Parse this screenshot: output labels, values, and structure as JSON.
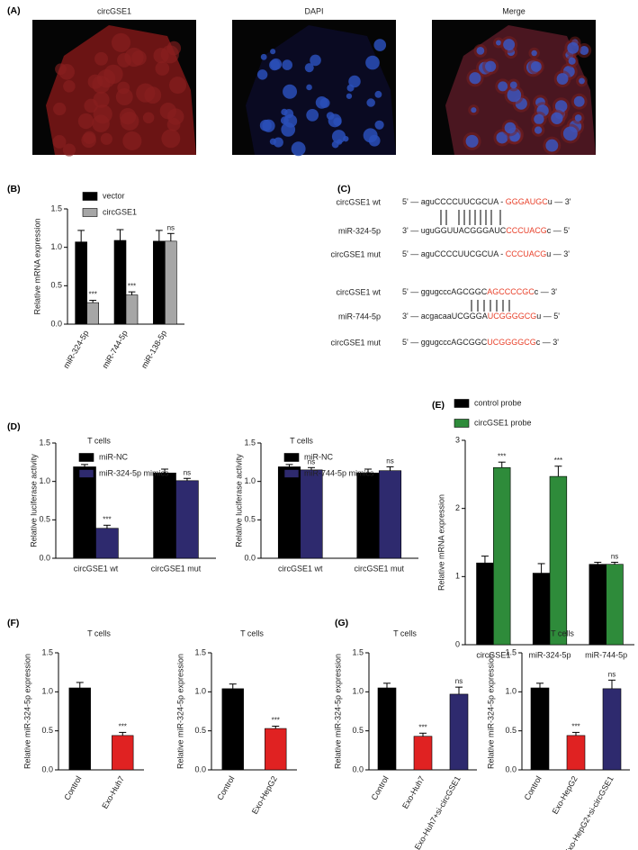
{
  "figure_a": {
    "panel": "(A)",
    "images": [
      {
        "label": "circGSE1",
        "color": "#e8231f"
      },
      {
        "label": "DAPI",
        "color": "#2f6fd0"
      },
      {
        "label": "Merge",
        "color": "#d9403a"
      }
    ]
  },
  "figure_c": {
    "panel": "(C)",
    "rows": [
      {
        "label": "circGSE1 wt",
        "segments": [
          {
            "text": "5' — aguCCCCUUCGCUA - ",
            "color": "#222222"
          },
          {
            "text": "GGGAUGC",
            "color": "#e8402a"
          },
          {
            "text": "u — 3'",
            "color": "#222222"
          }
        ]
      },
      {
        "label": "miR-324-5p",
        "segments": [
          {
            "text": "3' — uguGGUUACGGGAUC",
            "color": "#222222"
          },
          {
            "text": "CCCUACG",
            "color": "#e8402a"
          },
          {
            "text": "c — 5'",
            "color": "#222222"
          }
        ]
      },
      {
        "label": "circGSE1 mut",
        "segments": [
          {
            "text": "5' — aguCCCCUUCGCUA - ",
            "color": "#222222"
          },
          {
            "text": "CCCUACG",
            "color": "#e8402a"
          },
          {
            "text": "u — 3'",
            "color": "#222222"
          }
        ]
      },
      {
        "label": "circGSE1 wt",
        "segments": [
          {
            "text": "5' — ggugcccAGCGGC",
            "color": "#222222"
          },
          {
            "text": "AGCCCCGC",
            "color": "#e8402a"
          },
          {
            "text": "c — 3'",
            "color": "#222222"
          }
        ]
      },
      {
        "label": "miR-744-5p",
        "segments": [
          {
            "text": "3' — acgacaaUCGGGA",
            "color": "#222222"
          },
          {
            "text": "UCGGGGCG",
            "color": "#e8402a"
          },
          {
            "text": "u — 5'",
            "color": "#222222"
          }
        ]
      },
      {
        "label": "circGSE1 mut",
        "segments": [
          {
            "text": "5' — ggugcccAGCGGC",
            "color": "#222222"
          },
          {
            "text": "UCGGGGCG",
            "color": "#e8402a"
          },
          {
            "text": "c — 3'",
            "color": "#222222"
          }
        ]
      }
    ]
  },
  "chart_data": [
    {
      "type": "bar",
      "panel": "(B)",
      "ylabel": "Relative mRNA expression",
      "categories": [
        "miR-324-5p",
        "miR-744-5p",
        "miR-138-5p"
      ],
      "series": [
        {
          "name": "vector",
          "color": "#000000",
          "values": [
            1.07,
            1.09,
            1.08
          ],
          "errors": [
            0.15,
            0.14,
            0.14
          ]
        },
        {
          "name": "circGSE1",
          "color": "#a6a6a6",
          "values": [
            0.28,
            0.38,
            1.08
          ],
          "errors": [
            0.03,
            0.04,
            0.1
          ],
          "annotations": [
            "***",
            "***",
            "ns"
          ]
        }
      ],
      "ylim": [
        0,
        1.5
      ],
      "yticks": [
        {
          "value": 0,
          "label": "0.0"
        },
        {
          "value": 0.5,
          "label": "0.5"
        },
        {
          "value": 1,
          "label": "1.0"
        },
        {
          "value": 1.5,
          "label": "1.5"
        }
      ]
    },
    {
      "type": "bar",
      "panel": "(D)",
      "title": "T cells",
      "ylabel": "Relative  luciferase activity",
      "categories": [
        "circGSE1 wt",
        "circGSE1 mut"
      ],
      "series": [
        {
          "name": "miR-NC",
          "color": "#000000",
          "values": [
            1.19,
            1.11
          ],
          "errors": [
            0.03,
            0.05
          ]
        },
        {
          "name": "miR-324-5p mimics",
          "color": "#2e2a6e",
          "values": [
            0.39,
            1.01
          ],
          "errors": [
            0.04,
            0.03
          ],
          "annotations": [
            "***",
            "ns"
          ]
        }
      ],
      "ylim": [
        0,
        1.5
      ],
      "yticks": [
        {
          "value": 0,
          "label": "0.0"
        },
        {
          "value": 0.5,
          "label": "0.5"
        },
        {
          "value": 1,
          "label": "1.0"
        },
        {
          "value": 1.5,
          "label": "1.5"
        }
      ]
    },
    {
      "type": "bar",
      "title": "T cells",
      "ylabel": "Relative luciferase activity",
      "categories": [
        "circGSE1 wt",
        "circGSE1 mut"
      ],
      "series": [
        {
          "name": "miR-NC",
          "color": "#000000",
          "values": [
            1.19,
            1.11
          ],
          "errors": [
            0.03,
            0.05
          ]
        },
        {
          "name": "miR-744-5p mimics",
          "color": "#2e2a6e",
          "values": [
            1.15,
            1.14
          ],
          "errors": [
            0.03,
            0.05
          ],
          "annotations": [
            "ns",
            "ns"
          ]
        }
      ],
      "ylim": [
        0,
        1.5
      ],
      "yticks": [
        {
          "value": 0,
          "label": "0.0"
        },
        {
          "value": 0.5,
          "label": "0.5"
        },
        {
          "value": 1,
          "label": "1.0"
        },
        {
          "value": 1.5,
          "label": "1.5"
        }
      ]
    },
    {
      "type": "bar",
      "panel": "(E)",
      "ylabel": "Relative mRNA expression",
      "categories": [
        "circGSE1",
        "miR-324-5p",
        "miR-744-5p"
      ],
      "series": [
        {
          "name": "control probe",
          "color": "#000000",
          "values": [
            1.2,
            1.05,
            1.18
          ],
          "errors": [
            0.1,
            0.14,
            0.03
          ]
        },
        {
          "name": "circGSE1 probe",
          "color": "#2e8b3a",
          "values": [
            2.6,
            2.47,
            1.18
          ],
          "errors": [
            0.08,
            0.15,
            0.03
          ],
          "annotations": [
            "***",
            "***",
            "ns"
          ]
        }
      ],
      "ylim": [
        0,
        3
      ],
      "yticks": [
        0,
        1,
        2,
        3
      ]
    },
    {
      "type": "bar",
      "panel": "(F)",
      "title": "T cells",
      "ylabel": "Relative miR-324-5p expression",
      "categories": [
        "Control",
        "Exo-Huh7"
      ],
      "values": [
        1.05,
        0.44
      ],
      "errors": [
        0.07,
        0.04
      ],
      "colors": [
        "#000000",
        "#e02222"
      ],
      "annotations": [
        null,
        "***"
      ],
      "ylim": [
        0,
        1.5
      ],
      "yticks": [
        {
          "value": 0,
          "label": "0.0"
        },
        {
          "value": 0.5,
          "label": "0.5"
        },
        {
          "value": 1,
          "label": "1.0"
        },
        {
          "value": 1.5,
          "label": "1.5"
        }
      ]
    },
    {
      "type": "bar",
      "title": "T cells",
      "ylabel": "Relative miR-324-5p expression",
      "categories": [
        "Control",
        "Exo-HepG2"
      ],
      "values": [
        1.04,
        0.53
      ],
      "errors": [
        0.06,
        0.03
      ],
      "colors": [
        "#000000",
        "#e02222"
      ],
      "annotations": [
        null,
        "***"
      ],
      "ylim": [
        0,
        1.5
      ],
      "yticks": [
        {
          "value": 0,
          "label": "0.0"
        },
        {
          "value": 0.5,
          "label": "0.5"
        },
        {
          "value": 1,
          "label": "1.0"
        },
        {
          "value": 1.5,
          "label": "1.5"
        }
      ]
    },
    {
      "type": "bar",
      "panel": "(G)",
      "title": "T cells",
      "ylabel": "Relative miR-324-5p expression",
      "categories": [
        "Control",
        "Exo-Huh7",
        "Exo-Huh7+si-circGSE1"
      ],
      "values": [
        1.05,
        0.43,
        0.97
      ],
      "errors": [
        0.06,
        0.04,
        0.09
      ],
      "colors": [
        "#000000",
        "#e02222",
        "#2e2a6e"
      ],
      "annotations": [
        null,
        "***",
        "ns"
      ],
      "ylim": [
        0,
        1.5
      ],
      "yticks": [
        {
          "value": 0,
          "label": "0.0"
        },
        {
          "value": 0.5,
          "label": "0.5"
        },
        {
          "value": 1,
          "label": "1.0"
        },
        {
          "value": 1.5,
          "label": "1.5"
        }
      ]
    },
    {
      "type": "bar",
      "title": "T cells",
      "ylabel": "Relative miR-324-5p expression",
      "categories": [
        "Control",
        "Exo-HepG2",
        "Exo-HepG2+si-circGSE1"
      ],
      "values": [
        1.05,
        0.44,
        1.04
      ],
      "errors": [
        0.06,
        0.04,
        0.11
      ],
      "colors": [
        "#000000",
        "#e02222",
        "#2e2a6e"
      ],
      "annotations": [
        null,
        "***",
        "ns"
      ],
      "ylim": [
        0,
        1.5
      ],
      "yticks": [
        {
          "value": 0,
          "label": "0.0"
        },
        {
          "value": 0.5,
          "label": "0.5"
        },
        {
          "value": 1,
          "label": "1.0"
        },
        {
          "value": 1.5,
          "label": "1.5"
        }
      ]
    }
  ]
}
